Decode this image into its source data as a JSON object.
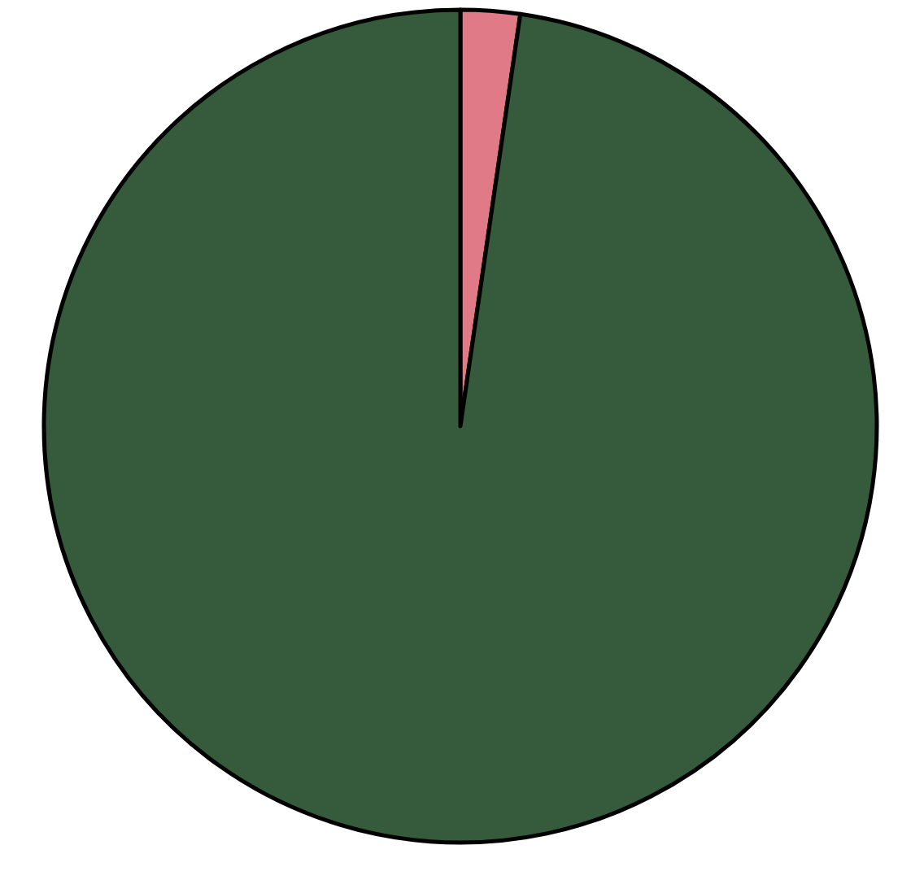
{
  "chart_data": {
    "type": "pie",
    "categories": [
      null,
      null
    ],
    "values": [
      2.3,
      97.7
    ],
    "colors": [
      "#e07a87",
      "#355a3c"
    ]
  }
}
